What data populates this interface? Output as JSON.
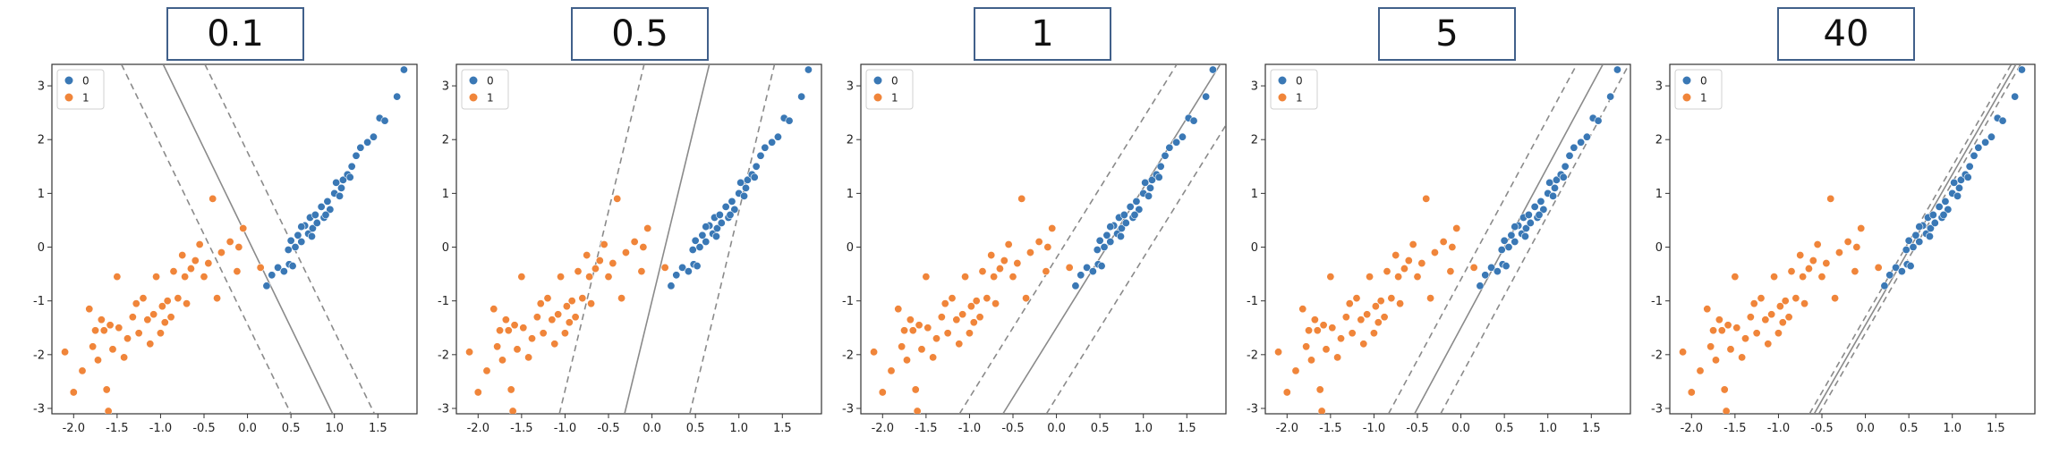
{
  "chart_data": [
    {
      "type": "scatter",
      "title": "0.1",
      "boundary": {
        "slope": -3.333,
        "intercept": 0.167
      },
      "margin_offset": 1.6
    },
    {
      "type": "scatter",
      "title": "0.5",
      "boundary": {
        "slope": 6.667,
        "intercept": -1.0
      },
      "margin_offset": 5.0
    },
    {
      "type": "scatter",
      "title": "1",
      "boundary": {
        "slope": 2.6,
        "intercept": -1.5
      },
      "margin_offset": 1.3
    },
    {
      "type": "scatter",
      "title": "5",
      "boundary": {
        "slope": 3.0,
        "intercept": -1.5
      },
      "margin_offset": 0.9
    },
    {
      "type": "scatter",
      "title": "40",
      "boundary": {
        "slope": 2.8,
        "intercept": -1.45
      },
      "margin_offset": 0.15
    }
  ],
  "shared": {
    "xlim": [
      -2.25,
      1.95
    ],
    "ylim": [
      -3.1,
      3.4
    ],
    "xticks": [
      -2.0,
      -1.5,
      -1.0,
      -0.5,
      0.0,
      0.5,
      1.0,
      1.5
    ],
    "xtick_labels": [
      "-2.0",
      "-1.5",
      "-1.0",
      "-0.5",
      "0.0",
      "0.5",
      "1.0",
      "1.5"
    ],
    "yticks": [
      -3,
      -2,
      -1,
      0,
      1,
      2,
      3
    ],
    "ytick_labels": [
      "-3",
      "-2",
      "-1",
      "0",
      "1",
      "2",
      "3"
    ],
    "legend_placement": "top-left",
    "legend": [
      {
        "label": "0",
        "color": "#3a78b5"
      },
      {
        "label": "1",
        "color": "#f0853a"
      }
    ],
    "series": [
      {
        "name": "0",
        "color": "#3a78b5",
        "points": [
          [
            0.22,
            -0.72
          ],
          [
            0.28,
            -0.52
          ],
          [
            0.35,
            -0.38
          ],
          [
            0.42,
            -0.45
          ],
          [
            0.48,
            -0.32
          ],
          [
            0.52,
            -0.35
          ],
          [
            0.47,
            -0.05
          ],
          [
            0.5,
            0.12
          ],
          [
            0.55,
            0.0
          ],
          [
            0.58,
            0.22
          ],
          [
            0.62,
            0.1
          ],
          [
            0.66,
            0.4
          ],
          [
            0.7,
            0.25
          ],
          [
            0.72,
            0.55
          ],
          [
            0.75,
            0.35
          ],
          [
            0.78,
            0.6
          ],
          [
            0.8,
            0.45
          ],
          [
            0.85,
            0.75
          ],
          [
            0.88,
            0.55
          ],
          [
            0.92,
            0.85
          ],
          [
            0.95,
            0.7
          ],
          [
            1.0,
            1.0
          ],
          [
            1.02,
            1.2
          ],
          [
            1.06,
            0.95
          ],
          [
            1.1,
            1.25
          ],
          [
            1.15,
            1.35
          ],
          [
            1.18,
            1.3
          ],
          [
            1.2,
            1.5
          ],
          [
            1.25,
            1.7
          ],
          [
            1.3,
            1.85
          ],
          [
            1.38,
            1.95
          ],
          [
            1.45,
            2.05
          ],
          [
            1.52,
            2.4
          ],
          [
            1.58,
            2.35
          ],
          [
            1.72,
            2.8
          ],
          [
            1.8,
            3.3
          ],
          [
            0.62,
            0.38
          ],
          [
            0.74,
            0.2
          ],
          [
            0.9,
            0.6
          ],
          [
            1.08,
            1.1
          ]
        ]
      },
      {
        "name": "1",
        "color": "#f0853a",
        "points": [
          [
            -2.1,
            -1.95
          ],
          [
            -2.0,
            -2.7
          ],
          [
            -1.9,
            -2.3
          ],
          [
            -1.82,
            -1.15
          ],
          [
            -1.78,
            -1.85
          ],
          [
            -1.75,
            -1.55
          ],
          [
            -1.72,
            -2.1
          ],
          [
            -1.68,
            -1.35
          ],
          [
            -1.65,
            -1.55
          ],
          [
            -1.62,
            -2.65
          ],
          [
            -1.58,
            -1.45
          ],
          [
            -1.55,
            -1.9
          ],
          [
            -1.5,
            -0.55
          ],
          [
            -1.48,
            -1.5
          ],
          [
            -1.42,
            -2.05
          ],
          [
            -1.38,
            -1.7
          ],
          [
            -1.32,
            -1.3
          ],
          [
            -1.28,
            -1.05
          ],
          [
            -1.25,
            -1.6
          ],
          [
            -1.2,
            -0.95
          ],
          [
            -1.15,
            -1.35
          ],
          [
            -1.12,
            -1.8
          ],
          [
            -1.08,
            -1.25
          ],
          [
            -1.05,
            -0.55
          ],
          [
            -1.0,
            -1.6
          ],
          [
            -0.98,
            -1.1
          ],
          [
            -0.95,
            -1.4
          ],
          [
            -0.92,
            -1.0
          ],
          [
            -0.88,
            -1.3
          ],
          [
            -0.85,
            -0.45
          ],
          [
            -0.8,
            -0.95
          ],
          [
            -0.75,
            -0.15
          ],
          [
            -0.72,
            -0.55
          ],
          [
            -0.7,
            -1.05
          ],
          [
            -0.65,
            -0.4
          ],
          [
            -0.6,
            -0.25
          ],
          [
            -0.55,
            0.05
          ],
          [
            -0.5,
            -0.55
          ],
          [
            -0.45,
            -0.3
          ],
          [
            -0.4,
            0.9
          ],
          [
            -0.35,
            -0.95
          ],
          [
            -0.3,
            -0.1
          ],
          [
            -0.2,
            0.1
          ],
          [
            -0.1,
            0.0
          ],
          [
            -0.05,
            0.35
          ],
          [
            -0.12,
            -0.45
          ],
          [
            0.15,
            -0.38
          ],
          [
            -1.6,
            -3.05
          ]
        ]
      }
    ]
  }
}
